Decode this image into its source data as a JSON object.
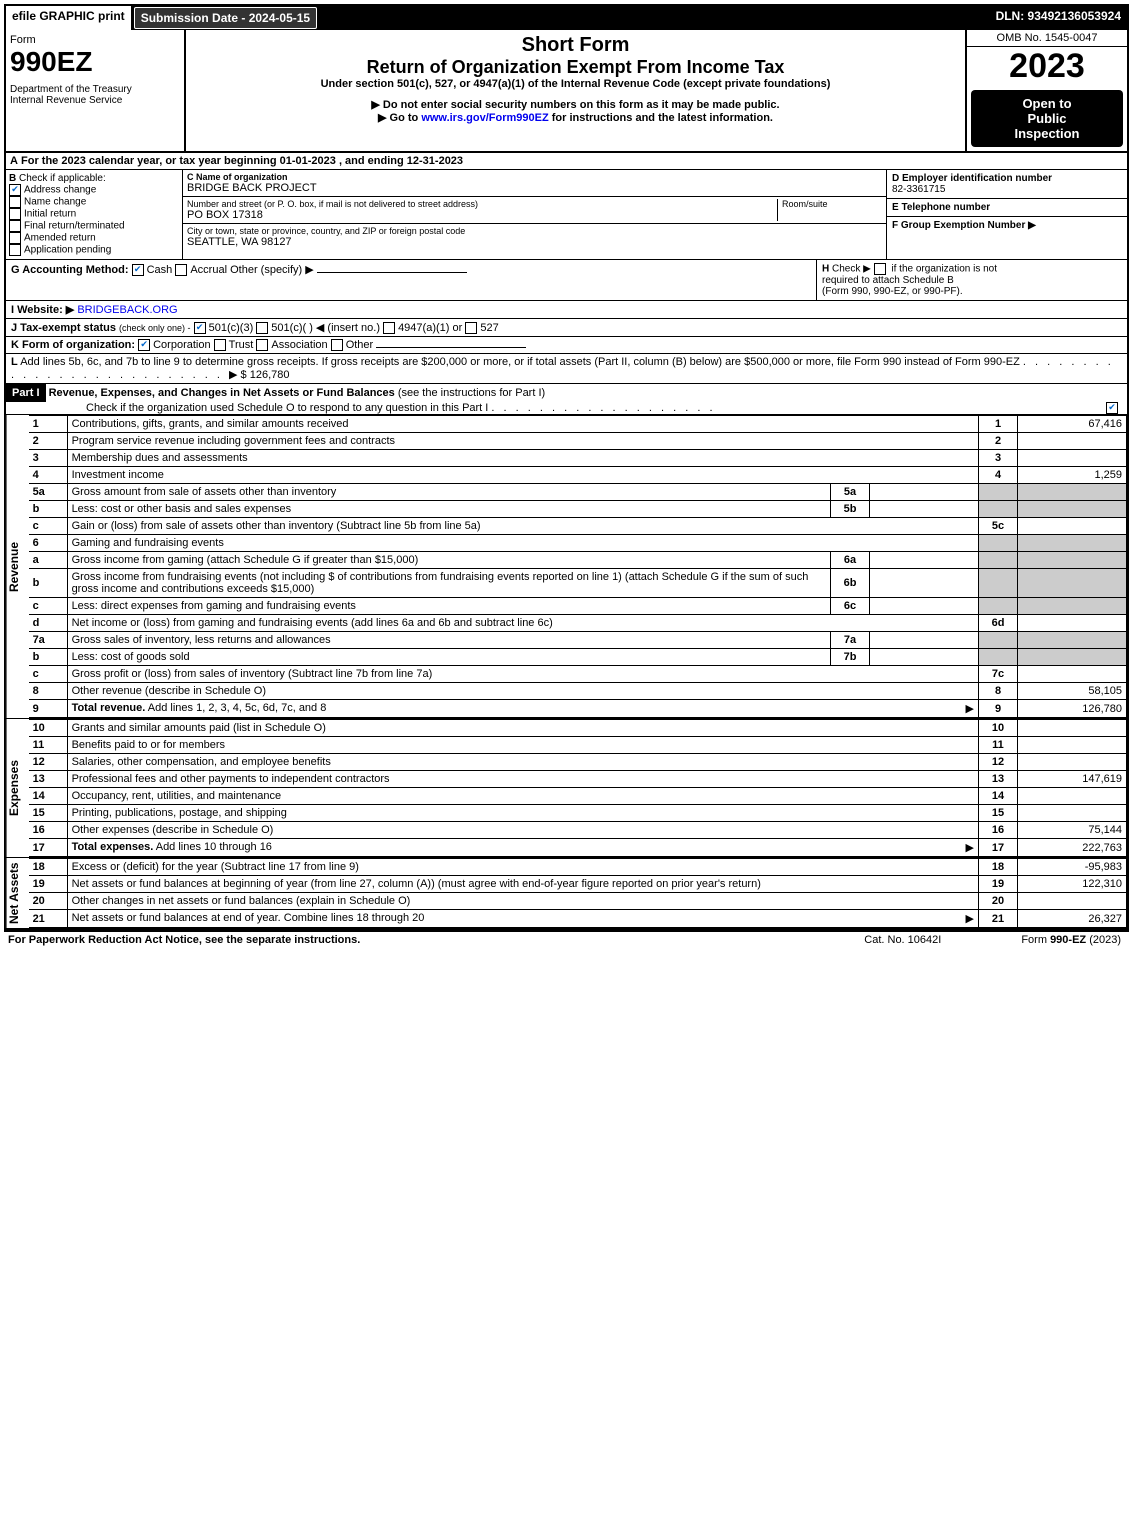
{
  "top": {
    "efile": "efile GRAPHIC print",
    "submission": "Submission Date - 2024-05-15",
    "dln": "DLN: 93492136053924"
  },
  "header": {
    "form_word": "Form",
    "form_code": "990EZ",
    "dept": "Department of the Treasury",
    "irs": "Internal Revenue Service",
    "short_form": "Short Form",
    "title": "Return of Organization Exempt From Income Tax",
    "subhead": "Under section 501(c), 527, or 4947(a)(1) of the Internal Revenue Code (except private foundations)",
    "warn": "▶ Do not enter social security numbers on this form as it may be made public.",
    "goto": "▶ Go to www.irs.gov/Form990EZ for instructions and the latest information.",
    "omb": "OMB No. 1545-0047",
    "year": "2023",
    "public1": "Open to",
    "public2": "Public",
    "public3": "Inspection"
  },
  "A": {
    "label": "A",
    "text": "For the 2023 calendar year, or tax year beginning 01-01-2023 , and ending 12-31-2023"
  },
  "B": {
    "label": "B",
    "heading": "Check if applicable:",
    "items": [
      {
        "label": "Address change",
        "checked": true
      },
      {
        "label": "Name change",
        "checked": false
      },
      {
        "label": "Initial return",
        "checked": false
      },
      {
        "label": "Final return/terminated",
        "checked": false
      },
      {
        "label": "Amended return",
        "checked": false
      },
      {
        "label": "Application pending",
        "checked": false
      }
    ]
  },
  "C": {
    "name_label": "C Name of organization",
    "name": "BRIDGE BACK PROJECT",
    "addr_label": "Number and street (or P. O. box, if mail is not delivered to street address)",
    "room_label": "Room/suite",
    "addr": "PO BOX 17318",
    "city_label": "City or town, state or province, country, and ZIP or foreign postal code",
    "city": "SEATTLE, WA  98127"
  },
  "D": {
    "label": "D Employer identification number",
    "ein": "82-3361715"
  },
  "E": {
    "label": "E Telephone number",
    "value": ""
  },
  "F": {
    "label": "F Group Exemption Number    ▶",
    "value": ""
  },
  "G": {
    "label": "G Accounting Method:",
    "cash": "Cash",
    "accrual": "Accrual",
    "other": "Other (specify) ▶"
  },
  "H": {
    "label": "H",
    "text1": "Check ▶",
    "text2": "if the organization is not",
    "text3": "required to attach Schedule B",
    "text4": "(Form 990, 990-EZ, or 990-PF)."
  },
  "I": {
    "label": "I Website: ▶",
    "value": "BRIDGEBACK.ORG"
  },
  "J": {
    "label": "J Tax-exempt status",
    "sub": "(check only one) -",
    "opts": "501(c)(3)   501(c)(  ) ◀ (insert no.)   4947(a)(1) or   527"
  },
  "K": {
    "label": "K Form of organization:",
    "opts": "Corporation   Trust   Association   Other"
  },
  "L": {
    "label": "L",
    "text": "Add lines 5b, 6c, and 7b to line 9 to determine gross receipts. If gross receipts are $200,000 or more, or if total assets (Part II, column (B) below) are $500,000 or more, file Form 990 instead of Form 990-EZ",
    "arrow": "▶ $",
    "amount": "126,780"
  },
  "partI": {
    "label": "Part I",
    "title": "Revenue, Expenses, and Changes in Net Assets or Fund Balances",
    "title_paren": "(see the instructions for Part I)",
    "check_text": "Check if the organization used Schedule O to respond to any question in this Part I"
  },
  "sections": {
    "revenue": "Revenue",
    "expenses": "Expenses",
    "netassets": "Net Assets"
  },
  "lines": [
    {
      "n": "1",
      "desc": "Contributions, gifts, grants, and similar amounts received",
      "ln": "1",
      "amt": "67,416"
    },
    {
      "n": "2",
      "desc": "Program service revenue including government fees and contracts",
      "ln": "2",
      "amt": ""
    },
    {
      "n": "3",
      "desc": "Membership dues and assessments",
      "ln": "3",
      "amt": ""
    },
    {
      "n": "4",
      "desc": "Investment income",
      "ln": "4",
      "amt": "1,259"
    },
    {
      "n": "5a",
      "desc": "Gross amount from sale of assets other than inventory",
      "sub": "5a",
      "subval": "",
      "shaded": true
    },
    {
      "n": "b",
      "desc": "Less: cost or other basis and sales expenses",
      "sub": "5b",
      "subval": "",
      "shaded": true
    },
    {
      "n": "c",
      "desc": "Gain or (loss) from sale of assets other than inventory (Subtract line 5b from line 5a)",
      "ln": "5c",
      "amt": ""
    },
    {
      "n": "6",
      "desc": "Gaming and fundraising events",
      "shaded": true,
      "noln": true
    },
    {
      "n": "a",
      "desc": "Gross income from gaming (attach Schedule G if greater than $15,000)",
      "sub": "6a",
      "subval": "",
      "shaded": true
    },
    {
      "n": "b",
      "desc": "Gross income from fundraising events (not including $                  of contributions from fundraising events reported on line 1) (attach Schedule G if the sum of such gross income and contributions exceeds $15,000)",
      "sub": "6b",
      "subval": "",
      "shaded": true
    },
    {
      "n": "c",
      "desc": "Less: direct expenses from gaming and fundraising events",
      "sub": "6c",
      "subval": "",
      "shaded": true
    },
    {
      "n": "d",
      "desc": "Net income or (loss) from gaming and fundraising events (add lines 6a and 6b and subtract line 6c)",
      "ln": "6d",
      "amt": ""
    },
    {
      "n": "7a",
      "desc": "Gross sales of inventory, less returns and allowances",
      "sub": "7a",
      "subval": "",
      "shaded": true
    },
    {
      "n": "b",
      "desc": "Less: cost of goods sold",
      "sub": "7b",
      "subval": "",
      "shaded": true
    },
    {
      "n": "c",
      "desc": "Gross profit or (loss) from sales of inventory (Subtract line 7b from line 7a)",
      "ln": "7c",
      "amt": ""
    },
    {
      "n": "8",
      "desc": "Other revenue (describe in Schedule O)",
      "ln": "8",
      "amt": "58,105"
    },
    {
      "n": "9",
      "desc": "Total revenue. Add lines 1, 2, 3, 4, 5c, 6d, 7c, and 8",
      "ln": "9",
      "amt": "126,780",
      "bold": true,
      "arrow": true
    }
  ],
  "exp_lines": [
    {
      "n": "10",
      "desc": "Grants and similar amounts paid (list in Schedule O)",
      "ln": "10",
      "amt": ""
    },
    {
      "n": "11",
      "desc": "Benefits paid to or for members",
      "ln": "11",
      "amt": ""
    },
    {
      "n": "12",
      "desc": "Salaries, other compensation, and employee benefits",
      "ln": "12",
      "amt": ""
    },
    {
      "n": "13",
      "desc": "Professional fees and other payments to independent contractors",
      "ln": "13",
      "amt": "147,619"
    },
    {
      "n": "14",
      "desc": "Occupancy, rent, utilities, and maintenance",
      "ln": "14",
      "amt": ""
    },
    {
      "n": "15",
      "desc": "Printing, publications, postage, and shipping",
      "ln": "15",
      "amt": ""
    },
    {
      "n": "16",
      "desc": "Other expenses (describe in Schedule O)",
      "ln": "16",
      "amt": "75,144"
    },
    {
      "n": "17",
      "desc": "Total expenses. Add lines 10 through 16",
      "ln": "17",
      "amt": "222,763",
      "bold": true,
      "arrow": true
    }
  ],
  "na_lines": [
    {
      "n": "18",
      "desc": "Excess or (deficit) for the year (Subtract line 17 from line 9)",
      "ln": "18",
      "amt": "-95,983"
    },
    {
      "n": "19",
      "desc": "Net assets or fund balances at beginning of year (from line 27, column (A)) (must agree with end-of-year figure reported on prior year's return)",
      "ln": "19",
      "amt": "122,310"
    },
    {
      "n": "20",
      "desc": "Other changes in net assets or fund balances (explain in Schedule O)",
      "ln": "20",
      "amt": ""
    },
    {
      "n": "21",
      "desc": "Net assets or fund balances at end of year. Combine lines 18 through 20",
      "ln": "21",
      "amt": "26,327",
      "arrow": true
    }
  ],
  "footer": {
    "pra": "For Paperwork Reduction Act Notice, see the separate instructions.",
    "cat": "Cat. No. 10642I",
    "form": "Form 990-EZ (2023)"
  }
}
